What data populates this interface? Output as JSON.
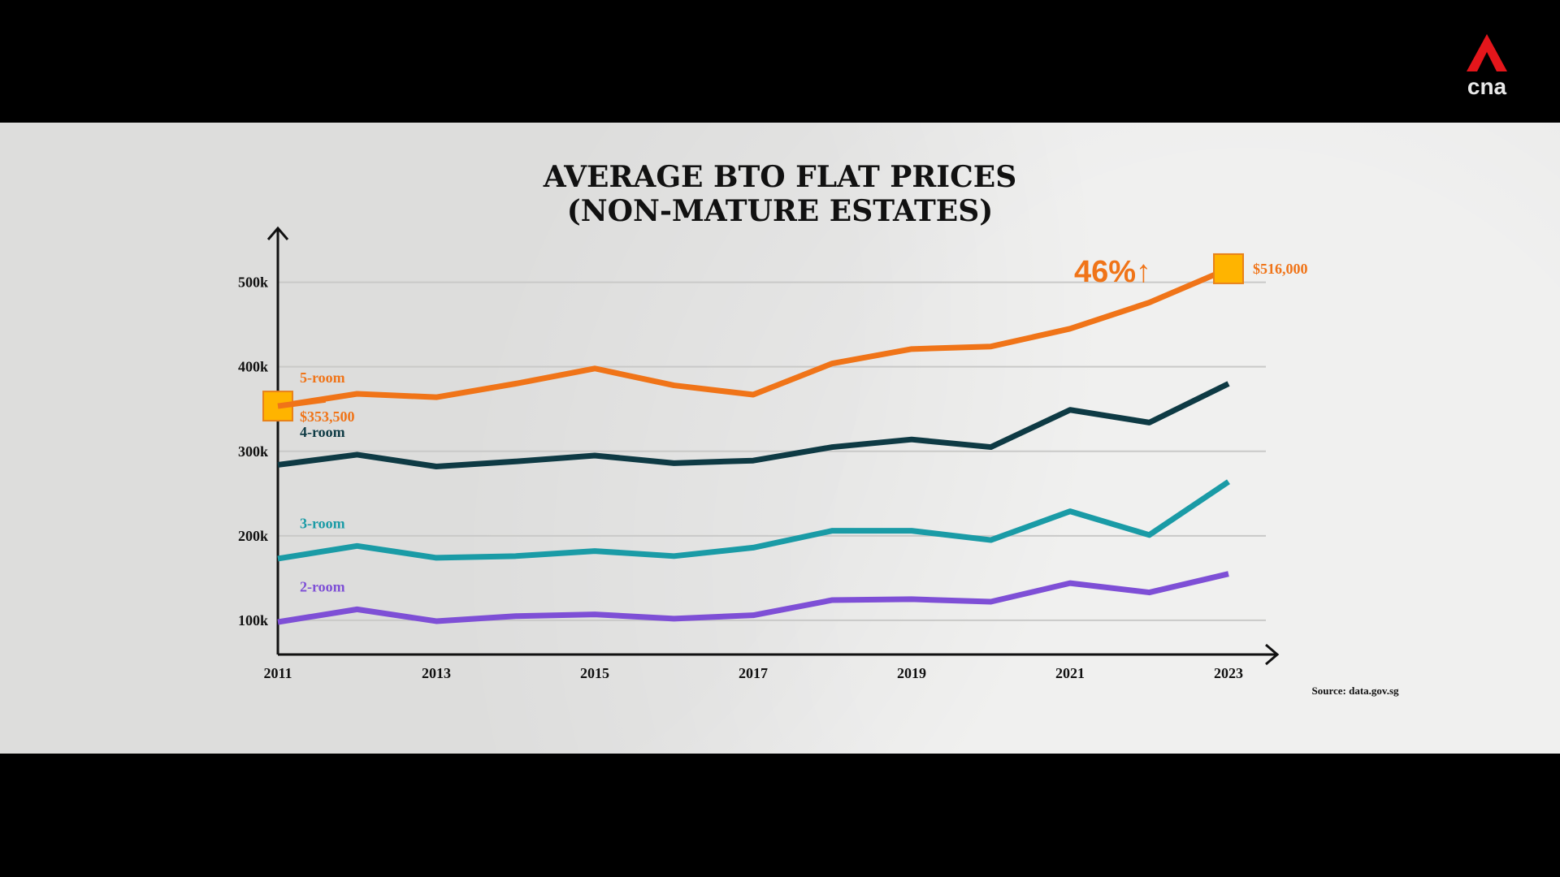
{
  "brand": {
    "logo_text": "cna",
    "logo_color": "#e4161b"
  },
  "chart_data": {
    "type": "line",
    "title": [
      "AVERAGE BTO FLAT PRICES",
      "(NON-MATURE ESTATES)"
    ],
    "xlabel": "",
    "ylabel": "",
    "x": [
      2011,
      2012,
      2013,
      2014,
      2015,
      2016,
      2017,
      2018,
      2019,
      2020,
      2021,
      2022,
      2023
    ],
    "x_tick_labels": [
      "2011",
      "2013",
      "2015",
      "2017",
      "2019",
      "2021",
      "2023"
    ],
    "x_tick_values": [
      2011,
      2013,
      2015,
      2017,
      2019,
      2021,
      2023
    ],
    "y_tick_labels": [
      "100k",
      "200k",
      "300k",
      "400k",
      "500k"
    ],
    "y_tick_values": [
      100,
      200,
      300,
      400,
      500
    ],
    "y_unit": "thousand SGD",
    "ylim": [
      0,
      560
    ],
    "xlim": [
      2011,
      2023.6
    ],
    "grid": true,
    "series": [
      {
        "name": "5-room",
        "color": "#f07418",
        "values": [
          353.5,
          368,
          364,
          380,
          398,
          378,
          367,
          404,
          421,
          424,
          445,
          476,
          516
        ]
      },
      {
        "name": "4-room",
        "color": "#0e3a44",
        "values": [
          284,
          296,
          282,
          288,
          295,
          286,
          289,
          305,
          314,
          305,
          349,
          334,
          380
        ]
      },
      {
        "name": "3-room",
        "color": "#1a9ba6",
        "values": [
          173,
          188,
          174,
          176,
          182,
          176,
          186,
          206,
          206,
          195,
          229,
          201,
          264
        ]
      },
      {
        "name": "2-room",
        "color": "#7e4fd6",
        "values": [
          98,
          113,
          99,
          105,
          107,
          102,
          106,
          124,
          125,
          122,
          144,
          133,
          155
        ]
      }
    ],
    "annotations": {
      "start_value": "$353,500",
      "end_value": "$516,000",
      "change": "46%↑",
      "marker_color": "#ffb400"
    },
    "source": "Source: data.gov.sg"
  }
}
